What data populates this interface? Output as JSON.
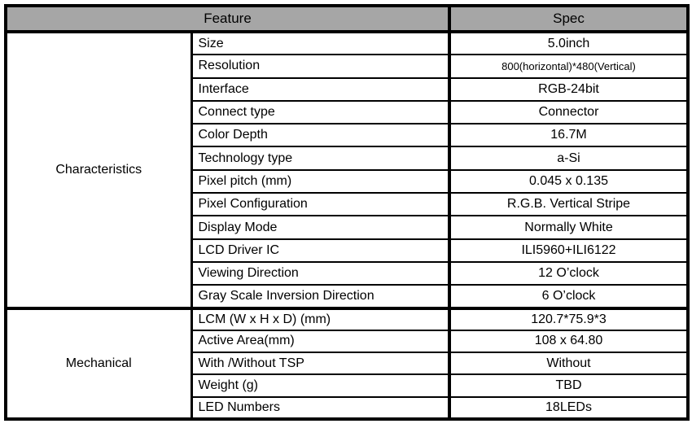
{
  "header": {
    "feature": "Feature",
    "spec": "Spec"
  },
  "colors": {
    "header_bg": "#a6a6a6",
    "border": "#000000",
    "text": "#000000"
  },
  "sections": [
    {
      "label": "Characteristics",
      "rows": [
        {
          "feature": "Size",
          "spec": "5.0inch"
        },
        {
          "feature": "Resolution",
          "spec": "800(horizontal)*480(Vertical)"
        },
        {
          "feature": "Interface",
          "spec": "RGB-24bit"
        },
        {
          "feature": "Connect type",
          "spec": "Connector"
        },
        {
          "feature": "Color Depth",
          "spec": "16.7M"
        },
        {
          "feature": "Technology type",
          "spec": "a-Si"
        },
        {
          "feature": "Pixel pitch (mm)",
          "spec": "0.045 x 0.135"
        },
        {
          "feature": "Pixel Configuration",
          "spec": "R.G.B. Vertical Stripe"
        },
        {
          "feature": "Display Mode",
          "spec": "Normally White"
        },
        {
          "feature": "LCD Driver IC",
          "spec": "ILI5960+ILI6122"
        },
        {
          "feature": "Viewing Direction",
          "spec": "12 O’clock"
        },
        {
          "feature": "Gray Scale Inversion Direction",
          "spec": "6 O’clock"
        }
      ]
    },
    {
      "label": "Mechanical",
      "rows": [
        {
          "feature": "LCM (W x H x D) (mm)",
          "spec": "120.7*75.9*3"
        },
        {
          "feature": "Active Area(mm)",
          "spec": "108 x 64.80"
        },
        {
          "feature": "With /Without TSP",
          "spec": "Without"
        },
        {
          "feature": "Weight (g)",
          "spec": "TBD"
        },
        {
          "feature": "LED Numbers",
          "spec": "18LEDs"
        }
      ]
    }
  ]
}
